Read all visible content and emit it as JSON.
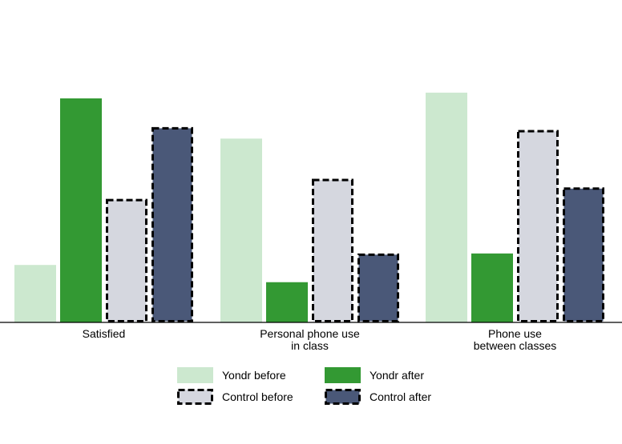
{
  "chart_data": {
    "type": "bar",
    "categories": [
      [
        "Satisfied"
      ],
      [
        "Personal phone use",
        "in class"
      ],
      [
        "Phone use",
        "between classes"
      ]
    ],
    "series": [
      {
        "name": "Yondr before",
        "values": [
          20,
          64,
          80
        ],
        "color": "#cce8cf",
        "dashed": false
      },
      {
        "name": "Yondr after",
        "values": [
          78,
          14,
          24
        ],
        "color": "#339933",
        "dashed": false
      },
      {
        "name": "Control before",
        "values": [
          43,
          50,
          67
        ],
        "color": "#d5d7df",
        "dashed": true
      },
      {
        "name": "Control after",
        "values": [
          68,
          24,
          47
        ],
        "color": "#4a5878",
        "dashed": true
      }
    ],
    "ylim": [
      0,
      100
    ],
    "grid": false,
    "legend": "bottom-center",
    "title": "",
    "xlabel": "",
    "ylabel": ""
  }
}
